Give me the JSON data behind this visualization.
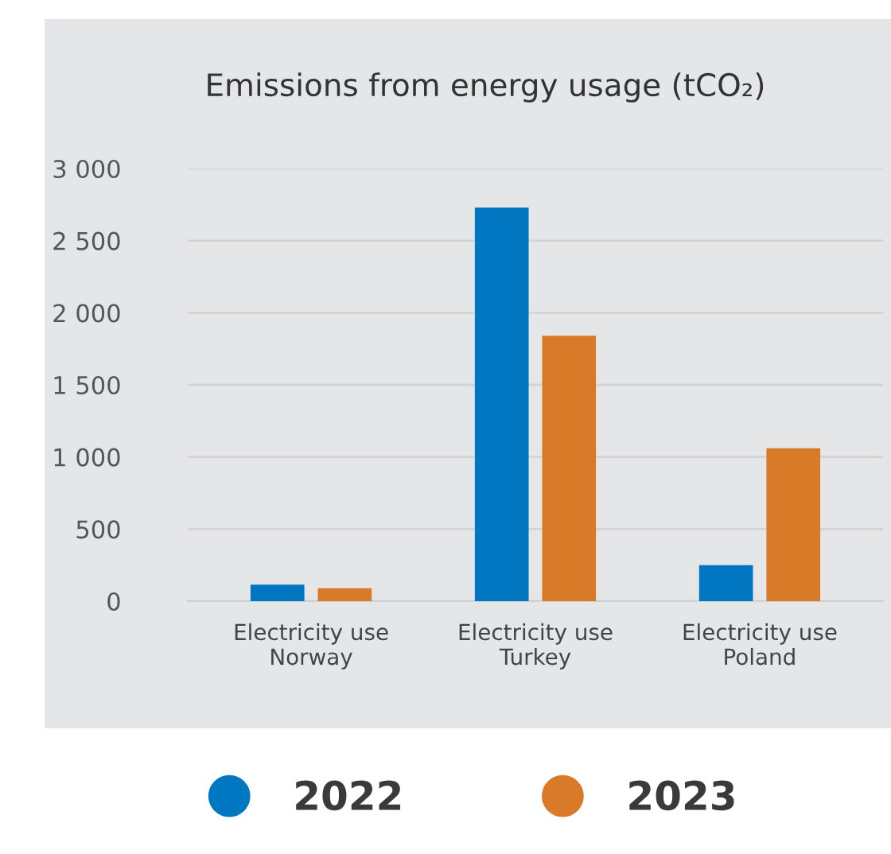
{
  "chart_data": {
    "type": "bar",
    "title": "Emissions from energy usage (tCO₂)",
    "categories": [
      "Electricity use\nNorway",
      "Electricity use\nTurkey",
      "Electricity use\nPoland"
    ],
    "series": [
      {
        "name": "2022",
        "color": "#0077c0",
        "values": [
          115,
          2730,
          250
        ]
      },
      {
        "name": "2023",
        "color": "#d97a28",
        "values": [
          90,
          1840,
          1060
        ]
      }
    ],
    "ylim": [
      0,
      3000
    ],
    "yticks": [
      {
        "value": 0,
        "label": "0"
      },
      {
        "value": 500,
        "label": "500"
      },
      {
        "value": 1000,
        "label": "1 000"
      },
      {
        "value": 1500,
        "label": "1 500"
      },
      {
        "value": 2000,
        "label": "2 000"
      },
      {
        "value": 2500,
        "label": "2 500"
      },
      {
        "value": 3000,
        "label": "3 000"
      }
    ],
    "grid": "y",
    "legend": "bottom"
  }
}
